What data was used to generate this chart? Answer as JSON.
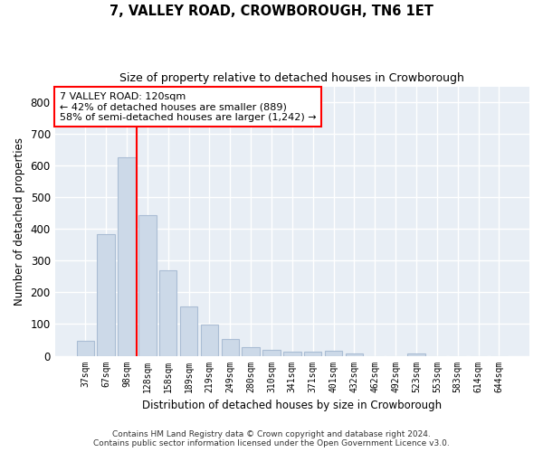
{
  "title": "7, VALLEY ROAD, CROWBOROUGH, TN6 1ET",
  "subtitle": "Size of property relative to detached houses in Crowborough",
  "xlabel": "Distribution of detached houses by size in Crowborough",
  "ylabel": "Number of detached properties",
  "bar_color": "#ccd9e8",
  "bar_edge_color": "#aabdd4",
  "background_color": "#e8eef5",
  "grid_color": "#ffffff",
  "categories": [
    "37sqm",
    "67sqm",
    "98sqm",
    "128sqm",
    "158sqm",
    "189sqm",
    "219sqm",
    "249sqm",
    "280sqm",
    "310sqm",
    "341sqm",
    "371sqm",
    "401sqm",
    "432sqm",
    "462sqm",
    "492sqm",
    "523sqm",
    "553sqm",
    "583sqm",
    "614sqm",
    "644sqm"
  ],
  "values": [
    47,
    385,
    625,
    445,
    270,
    155,
    98,
    52,
    28,
    18,
    12,
    12,
    15,
    8,
    0,
    0,
    8,
    0,
    0,
    0,
    0
  ],
  "ylim": [
    0,
    850
  ],
  "yticks": [
    0,
    100,
    200,
    300,
    400,
    500,
    600,
    700,
    800
  ],
  "property_label": "7 VALLEY ROAD: 120sqm",
  "annotation_line1": "← 42% of detached houses are smaller (889)",
  "annotation_line2": "58% of semi-detached houses are larger (1,242) →",
  "vline_x": 2.5,
  "footer_line1": "Contains HM Land Registry data © Crown copyright and database right 2024.",
  "footer_line2": "Contains public sector information licensed under the Open Government Licence v3.0."
}
